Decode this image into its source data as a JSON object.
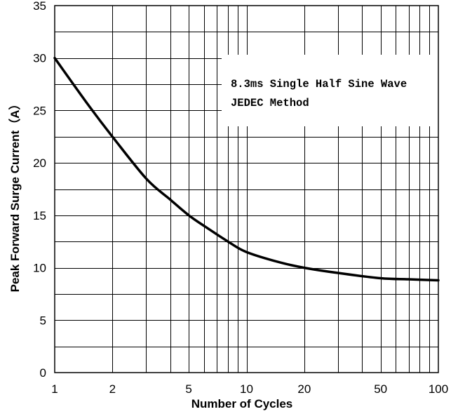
{
  "chart_data": {
    "type": "line",
    "title": "",
    "xlabel": "Number of Cycles",
    "ylabel": "Peak Forward Surge Current（A）",
    "xscale": "log",
    "xlim": [
      1,
      100
    ],
    "ylim": [
      0,
      35
    ],
    "x_tick_labels": [
      "1",
      "2",
      "5",
      "10",
      "20",
      "50",
      "100"
    ],
    "x_ticks": [
      1,
      2,
      5,
      10,
      20,
      50,
      100
    ],
    "y_ticks": [
      0,
      5,
      10,
      15,
      20,
      25,
      30,
      35
    ],
    "y_tick_labels": [
      "0",
      "5",
      "10",
      "15",
      "20",
      "25",
      "30",
      "35"
    ],
    "grid": true,
    "annotation_lines": [
      "8.3ms Single Half Sine Wave",
      "JEDEC Method"
    ],
    "annotation_position": "top-right",
    "series": [
      {
        "x": [
          1,
          1.5,
          2,
          3,
          4,
          5,
          6,
          8,
          10,
          15,
          20,
          30,
          50,
          70,
          100
        ],
        "y": [
          30,
          25.5,
          22.5,
          18.5,
          16.5,
          15,
          14,
          12.5,
          11.5,
          10.5,
          10,
          9.5,
          9,
          8.9,
          8.8
        ]
      }
    ],
    "color": "#000000"
  }
}
